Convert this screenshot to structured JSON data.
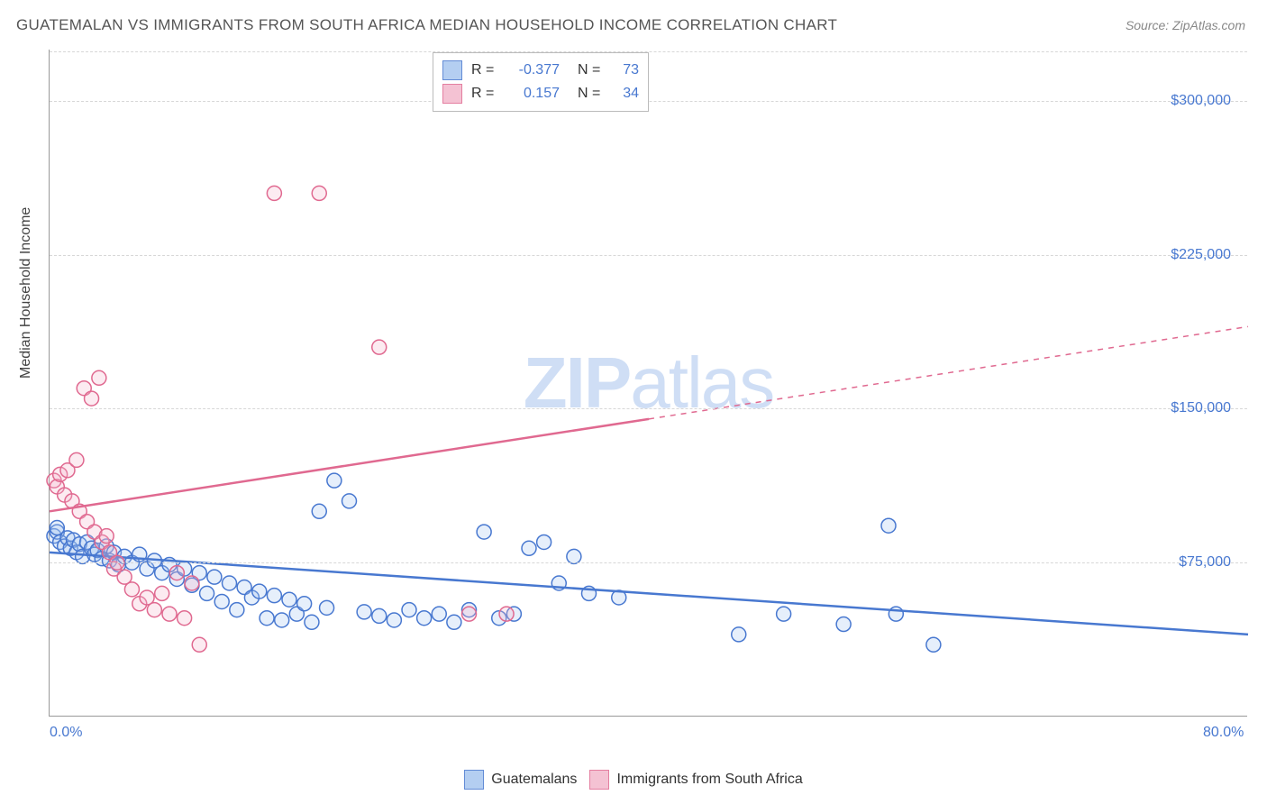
{
  "title": "GUATEMALAN VS IMMIGRANTS FROM SOUTH AFRICA MEDIAN HOUSEHOLD INCOME CORRELATION CHART",
  "source": "Source: ZipAtlas.com",
  "watermark_bold": "ZIP",
  "watermark_light": "atlas",
  "chart": {
    "type": "scatter",
    "y_axis_label": "Median Household Income",
    "xlim": [
      0,
      80
    ],
    "ylim": [
      0,
      325000
    ],
    "x_ticks": [
      {
        "v": 0,
        "label": "0.0%"
      },
      {
        "v": 80,
        "label": "80.0%"
      }
    ],
    "y_ticks": [
      {
        "v": 75000,
        "label": "$75,000"
      },
      {
        "v": 150000,
        "label": "$150,000"
      },
      {
        "v": 225000,
        "label": "$225,000"
      },
      {
        "v": 300000,
        "label": "$300,000"
      }
    ],
    "grid_additional": [
      0
    ],
    "background_color": "#ffffff",
    "grid_color": "#d7d7d7",
    "axis_color": "#999999",
    "tick_label_color": "#4878d0",
    "marker_radius": 8,
    "marker_stroke_width": 1.5,
    "marker_fill_opacity": 0.28,
    "regression_line_width": 2.5,
    "series": [
      {
        "name": "Guatemalans",
        "color_stroke": "#4878d0",
        "color_fill": "#a7c6ef",
        "R": "-0.377",
        "N": "73",
        "regression": {
          "x1": 0,
          "y1": 80000,
          "x2": 80,
          "y2": 40000,
          "dashed_after_x": null
        },
        "points": [
          [
            0.3,
            88000
          ],
          [
            0.5,
            90000
          ],
          [
            0.7,
            85000
          ],
          [
            1.0,
            83000
          ],
          [
            1.2,
            87000
          ],
          [
            1.4,
            82000
          ],
          [
            1.6,
            86000
          ],
          [
            1.8,
            80000
          ],
          [
            2.0,
            84000
          ],
          [
            2.2,
            78000
          ],
          [
            2.5,
            85000
          ],
          [
            2.8,
            82000
          ],
          [
            3.0,
            79000
          ],
          [
            3.2,
            81000
          ],
          [
            3.5,
            77000
          ],
          [
            3.8,
            83000
          ],
          [
            4.0,
            76000
          ],
          [
            4.3,
            80000
          ],
          [
            4.6,
            74000
          ],
          [
            5.0,
            78000
          ],
          [
            5.5,
            75000
          ],
          [
            6.0,
            79000
          ],
          [
            6.5,
            72000
          ],
          [
            7.0,
            76000
          ],
          [
            7.5,
            70000
          ],
          [
            8.0,
            74000
          ],
          [
            8.5,
            67000
          ],
          [
            9.0,
            72000
          ],
          [
            9.5,
            64000
          ],
          [
            10.0,
            70000
          ],
          [
            10.5,
            60000
          ],
          [
            11.0,
            68000
          ],
          [
            11.5,
            56000
          ],
          [
            12.0,
            65000
          ],
          [
            12.5,
            52000
          ],
          [
            13.0,
            63000
          ],
          [
            13.5,
            58000
          ],
          [
            14.0,
            61000
          ],
          [
            14.5,
            48000
          ],
          [
            15.0,
            59000
          ],
          [
            15.5,
            47000
          ],
          [
            16.0,
            57000
          ],
          [
            16.5,
            50000
          ],
          [
            17.0,
            55000
          ],
          [
            17.5,
            46000
          ],
          [
            18.0,
            100000
          ],
          [
            18.5,
            53000
          ],
          [
            19.0,
            115000
          ],
          [
            20.0,
            105000
          ],
          [
            21.0,
            51000
          ],
          [
            22.0,
            49000
          ],
          [
            23.0,
            47000
          ],
          [
            24.0,
            52000
          ],
          [
            25.0,
            48000
          ],
          [
            26.0,
            50000
          ],
          [
            27.0,
            46000
          ],
          [
            28.0,
            52000
          ],
          [
            29.0,
            90000
          ],
          [
            30.0,
            48000
          ],
          [
            31.0,
            50000
          ],
          [
            32.0,
            82000
          ],
          [
            33.0,
            85000
          ],
          [
            34.0,
            65000
          ],
          [
            35.0,
            78000
          ],
          [
            36.0,
            60000
          ],
          [
            38.0,
            58000
          ],
          [
            46.0,
            40000
          ],
          [
            49.0,
            50000
          ],
          [
            53.0,
            45000
          ],
          [
            56.0,
            93000
          ],
          [
            59.0,
            35000
          ],
          [
            56.5,
            50000
          ],
          [
            0.5,
            92000
          ]
        ]
      },
      {
        "name": "Immigrants from South Africa",
        "color_stroke": "#e06990",
        "color_fill": "#f3b8cc",
        "R": "0.157",
        "N": "34",
        "regression": {
          "x1": 0,
          "y1": 100000,
          "x2": 80,
          "y2": 190000,
          "dashed_after_x": 40
        },
        "points": [
          [
            0.3,
            115000
          ],
          [
            0.5,
            112000
          ],
          [
            0.7,
            118000
          ],
          [
            1.0,
            108000
          ],
          [
            1.2,
            120000
          ],
          [
            1.5,
            105000
          ],
          [
            1.8,
            125000
          ],
          [
            2.0,
            100000
          ],
          [
            2.3,
            160000
          ],
          [
            2.5,
            95000
          ],
          [
            2.8,
            155000
          ],
          [
            3.0,
            90000
          ],
          [
            3.3,
            165000
          ],
          [
            3.5,
            85000
          ],
          [
            3.8,
            88000
          ],
          [
            4.0,
            80000
          ],
          [
            4.3,
            72000
          ],
          [
            4.5,
            75000
          ],
          [
            5.0,
            68000
          ],
          [
            5.5,
            62000
          ],
          [
            6.0,
            55000
          ],
          [
            6.5,
            58000
          ],
          [
            7.0,
            52000
          ],
          [
            7.5,
            60000
          ],
          [
            8.0,
            50000
          ],
          [
            8.5,
            70000
          ],
          [
            9.0,
            48000
          ],
          [
            9.5,
            65000
          ],
          [
            10.0,
            35000
          ],
          [
            15.0,
            255000
          ],
          [
            18.0,
            255000
          ],
          [
            22.0,
            180000
          ],
          [
            28.0,
            50000
          ],
          [
            30.5,
            50000
          ]
        ]
      }
    ]
  },
  "legend_top": {
    "r_label": "R =",
    "n_label": "N ="
  },
  "legend_bottom": {
    "items": [
      "Guatemalans",
      "Immigrants from South Africa"
    ]
  }
}
